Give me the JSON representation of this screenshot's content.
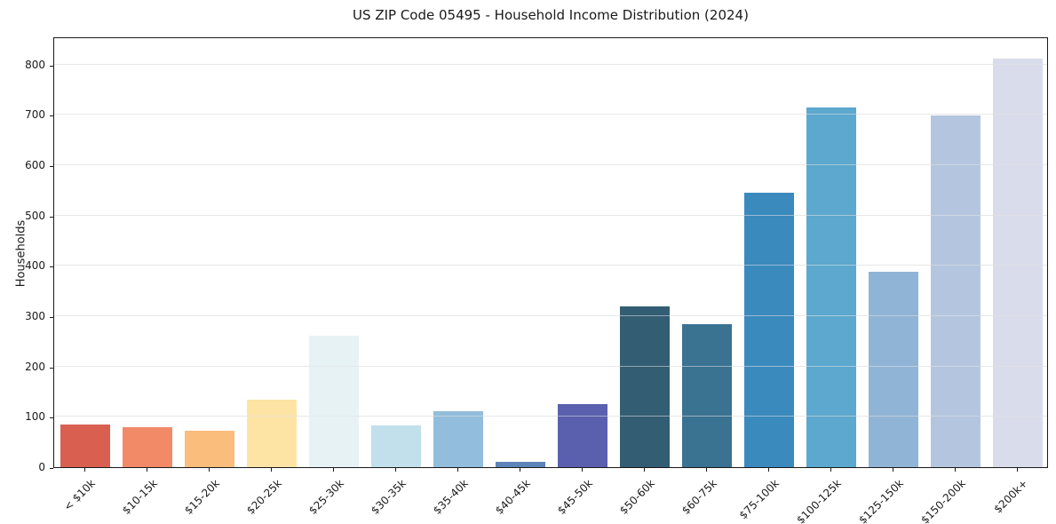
{
  "title": "US ZIP Code 05495 - Household Income Distribution (2024)",
  "chart_data": {
    "type": "bar",
    "title": "US ZIP Code 05495 - Household Income Distribution (2024)",
    "xlabel": "",
    "ylabel": "Households",
    "categories": [
      "< $10k",
      "$10-15k",
      "$15-20k",
      "$20-25k",
      "$25-30k",
      "$30-35k",
      "$35-40k",
      "$40-45k",
      "$45-50k",
      "$50-60k",
      "$60-75k",
      "$75-100k",
      "$100-125k",
      "$125-150k",
      "$150-200k",
      "$200k+"
    ],
    "values": [
      85,
      79,
      73,
      134,
      261,
      83,
      112,
      10,
      125,
      319,
      285,
      545,
      714,
      388,
      699,
      812
    ],
    "bar_colors": [
      "#d95f50",
      "#f28a68",
      "#fbbd7c",
      "#fde4a4",
      "#e7f2f5",
      "#c1e0eb",
      "#93bddc",
      "#5d84b8",
      "#5a60ae",
      "#335d73",
      "#3a7292",
      "#3a8abe",
      "#5ca8ce",
      "#90b4d6",
      "#b4c6df",
      "#d9dcea"
    ],
    "ylim": [
      0,
      856
    ],
    "yticks": [
      0,
      100,
      200,
      300,
      400,
      500,
      600,
      700,
      800
    ],
    "x_tick_rotation": 45,
    "grid": "horizontal",
    "legend": "none",
    "plot_background": "#ffffff"
  },
  "colors": {
    "spine": "#1a1a1a",
    "grid": "#ebebeb",
    "text": "#1a1a1a",
    "background": "#ffffff"
  }
}
